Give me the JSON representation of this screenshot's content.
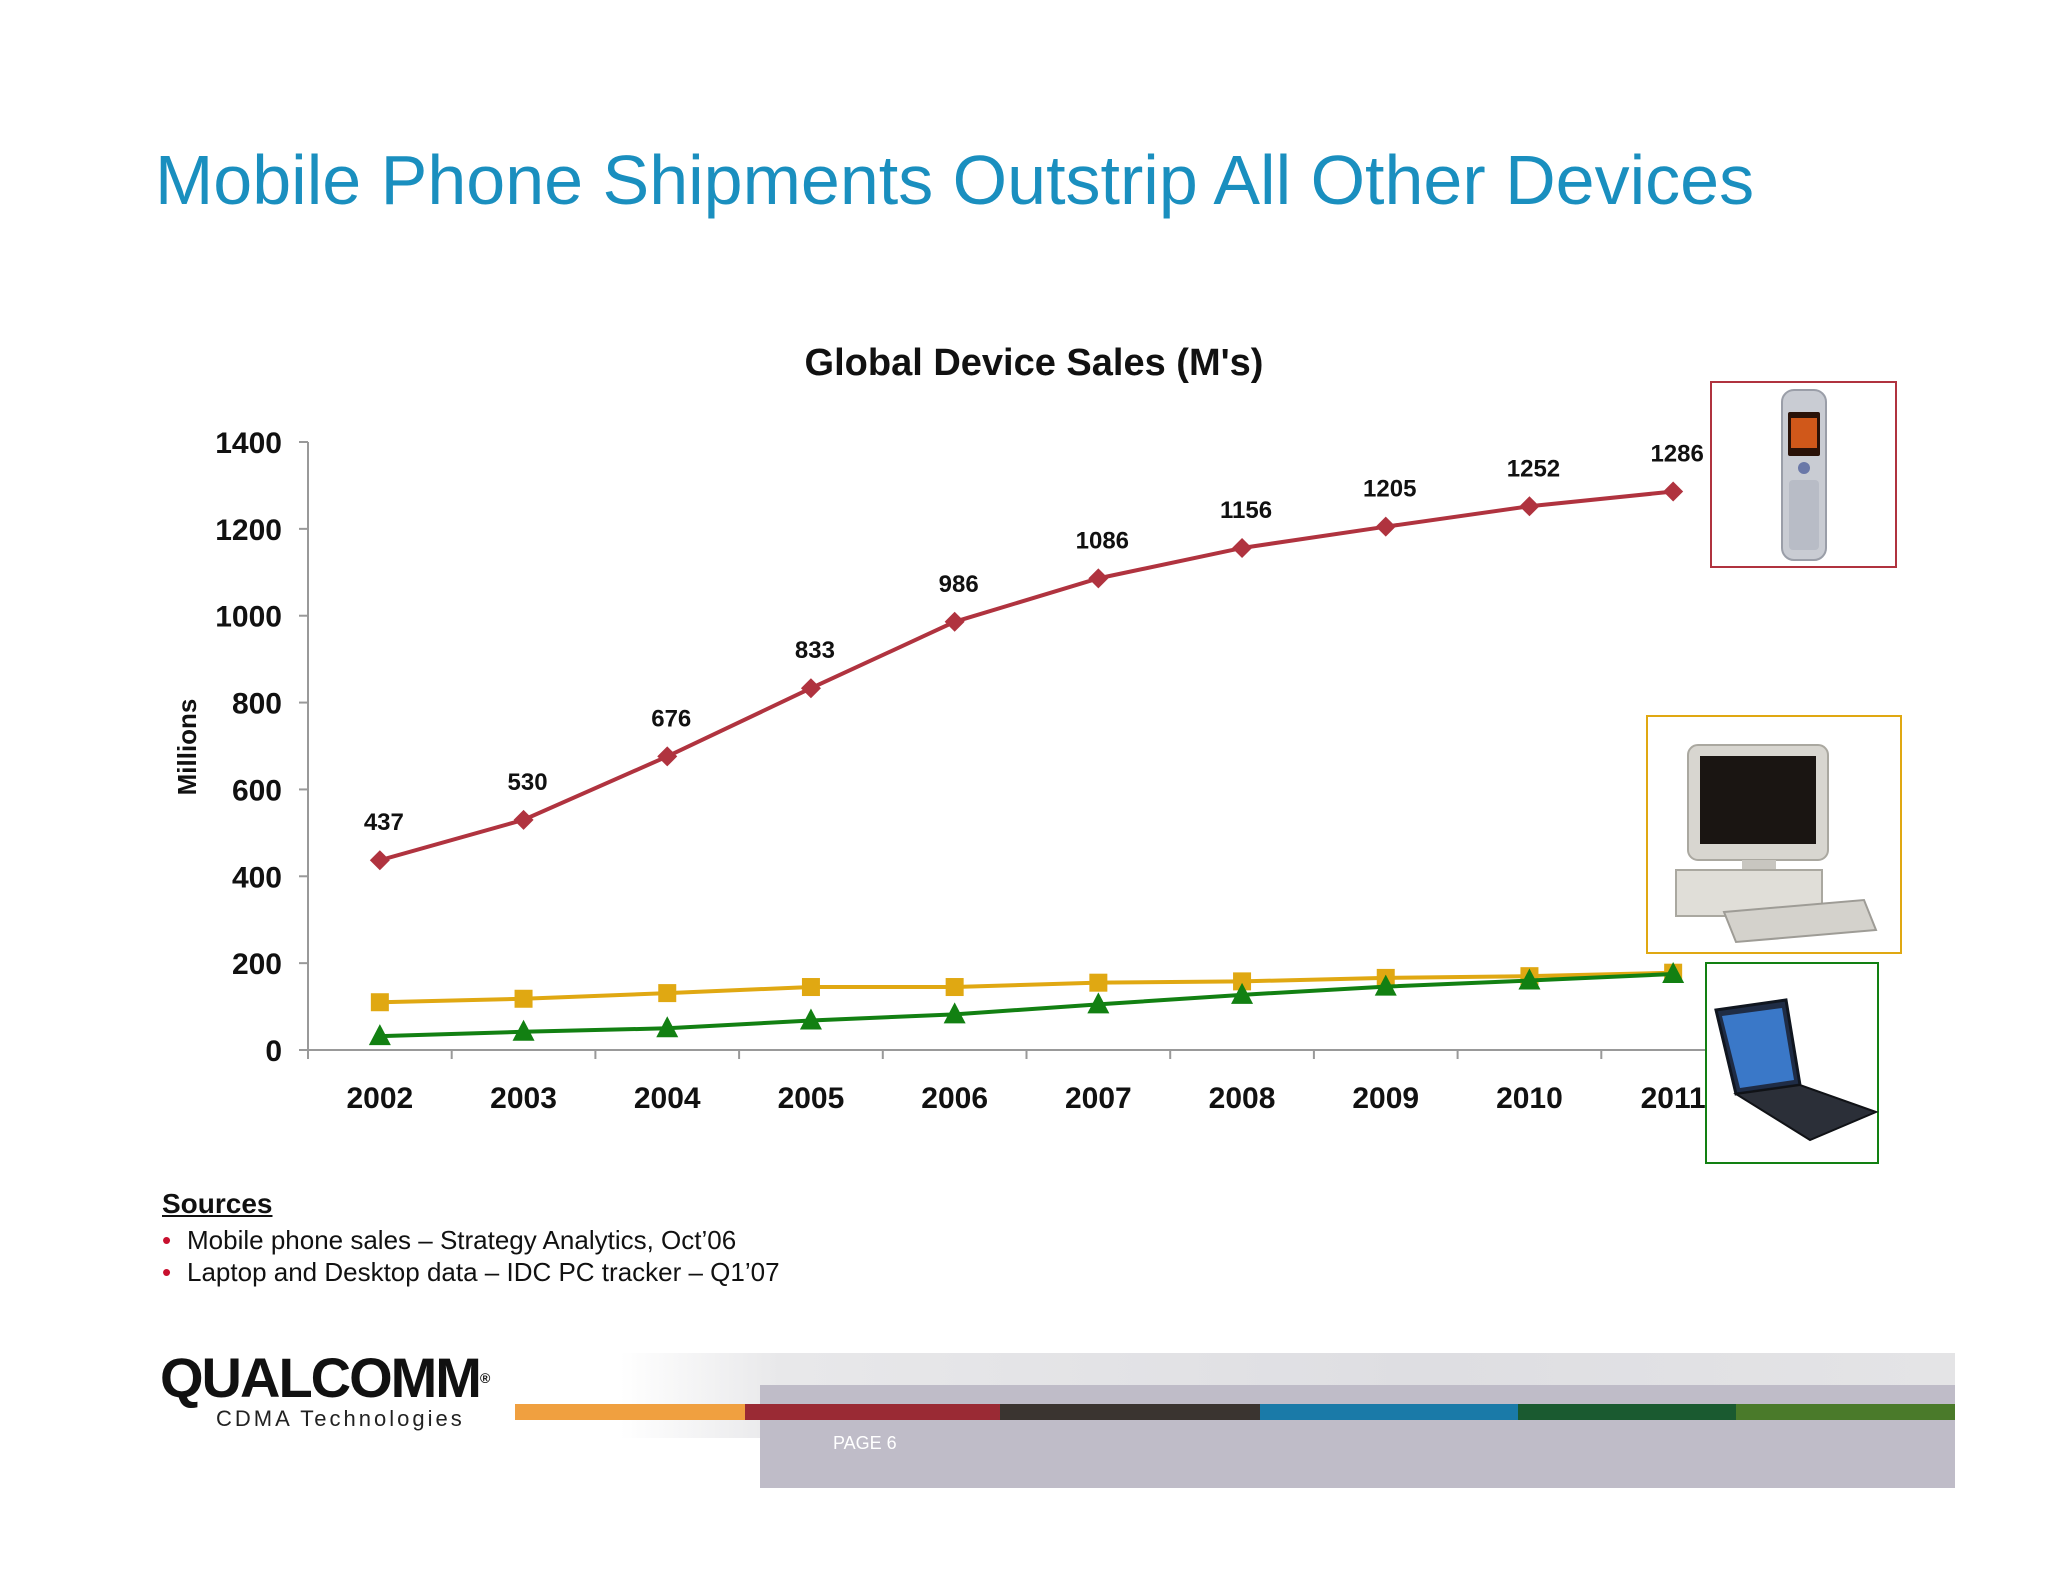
{
  "slide": {
    "title": "Mobile Phone Shipments Outstrip All Other Devices",
    "page_label": "PAGE 6"
  },
  "sources": {
    "heading": "Sources",
    "items": [
      "Mobile phone sales – Strategy Analytics, Oct’06",
      "Laptop and Desktop data – IDC PC tracker – Q1’07"
    ]
  },
  "logo": {
    "name": "QUALCOMM",
    "registered": "®",
    "tagline": "CDMA Technologies"
  },
  "colors": {
    "title": "#1a8fbf",
    "mobile": "#b0333f",
    "desktop": "#e0a812",
    "laptop": "#128012",
    "stripes": [
      "#f0a040",
      "#9a2a34",
      "#3a3430",
      "#1a7aa8",
      "#1a5a30",
      "#4a7a2a"
    ]
  },
  "chart_data": {
    "type": "line",
    "title": "Global Device Sales (M's)",
    "xlabel": "",
    "ylabel": "Millions",
    "x": [
      "2002",
      "2003",
      "2004",
      "2005",
      "2006",
      "2007",
      "2008",
      "2009",
      "2010",
      "2011"
    ],
    "ylim": [
      0,
      1400
    ],
    "yticks": [
      0,
      200,
      400,
      600,
      800,
      1000,
      1200,
      1400
    ],
    "grid": false,
    "legend": "none",
    "series": [
      {
        "key": "mobile",
        "marker": "diamond",
        "color": "#b0333f",
        "show_labels": true,
        "values": [
          437,
          530,
          676,
          833,
          986,
          1086,
          1156,
          1205,
          1252,
          1286
        ],
        "image_icon": "mobile-phone-icon"
      },
      {
        "key": "desktop",
        "marker": "square",
        "color": "#e0a812",
        "show_labels": false,
        "values": [
          110,
          118,
          131,
          145,
          145,
          155,
          158,
          166,
          170,
          178
        ],
        "image_icon": "desktop-computer-icon"
      },
      {
        "key": "laptop",
        "marker": "triangle",
        "color": "#128012",
        "show_labels": false,
        "values": [
          32,
          42,
          50,
          68,
          82,
          105,
          127,
          146,
          160,
          175
        ],
        "image_icon": "laptop-icon"
      }
    ]
  }
}
